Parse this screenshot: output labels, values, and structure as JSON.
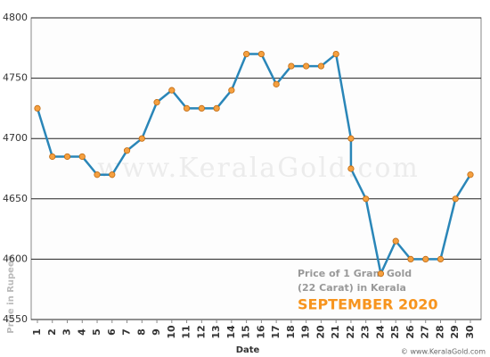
{
  "chart_data": {
    "type": "line",
    "watermark": "www.KeralaGold.com",
    "annotations": [
      "Price of 1 Gram Gold",
      "(22 Carat) in Kerala",
      "SEPTEMBER 2020"
    ],
    "x_label": "Date",
    "y_label": "Price in Rupees",
    "footer": "© www.KeralaGold.com",
    "x": [
      1,
      2,
      3,
      4,
      5,
      6,
      7,
      8,
      9,
      10,
      11,
      12,
      13,
      14,
      15,
      16,
      17,
      18,
      19,
      20,
      21,
      22,
      22,
      23,
      24,
      25,
      26,
      27,
      28,
      29,
      30
    ],
    "values": [
      4725,
      4685,
      4685,
      4685,
      4670,
      4670,
      4690,
      4700,
      4730,
      4740,
      4725,
      4725,
      4725,
      4740,
      4770,
      4770,
      4745,
      4760,
      4760,
      4760,
      4770,
      4700,
      4675,
      4650,
      4588,
      4615,
      4600,
      4600,
      4600,
      4650,
      4670
    ],
    "color": "#2a86b8",
    "marker_color": "#f5a040",
    "xlim": [
      1,
      30
    ],
    "xticks": [
      1,
      2,
      3,
      4,
      5,
      6,
      7,
      8,
      9,
      10,
      11,
      12,
      13,
      14,
      15,
      16,
      17,
      18,
      19,
      20,
      21,
      22,
      23,
      24,
      25,
      26,
      27,
      28,
      29,
      30
    ],
    "ylim": [
      4550,
      4800
    ],
    "yticks": [
      4550,
      4600,
      4650,
      4700,
      4750,
      4800
    ],
    "grid": true
  }
}
